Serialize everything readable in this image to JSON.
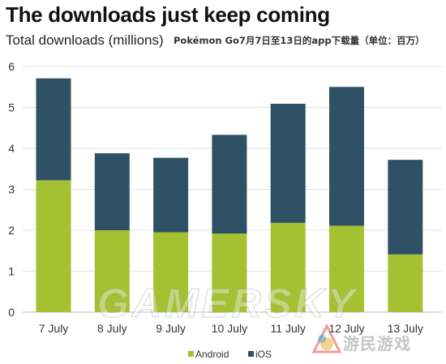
{
  "header": {
    "title": "The downloads just keep coming",
    "subtitle": "Total downloads (millions)",
    "subtitle_cn": "Pokémon Go7月7日至13日的app下载量（单位：百万）"
  },
  "watermark": {
    "text": "GAMERSKY",
    "cn_text": "游民游戏"
  },
  "colors": {
    "android": "#a5c031",
    "ios": "#2f5166",
    "axis_text": "#333333",
    "grid": "#e2e2e2"
  },
  "chart_data": {
    "type": "bar",
    "stacked": true,
    "title": "The downloads just keep coming",
    "subtitle": "Total downloads (millions)",
    "xlabel": "",
    "ylabel": "",
    "ylim": [
      0,
      6
    ],
    "yticks": [
      0,
      1,
      2,
      3,
      4,
      5,
      6
    ],
    "grid": true,
    "legend_position": "bottom-center",
    "categories": [
      "7 July",
      "8 July",
      "9 July",
      "10 July",
      "11 July",
      "12 July",
      "13 July"
    ],
    "series": [
      {
        "name": "Android",
        "color": "#a5c031",
        "values": [
          3.22,
          2.0,
          1.95,
          1.92,
          2.18,
          2.11,
          1.41
        ]
      },
      {
        "name": "iOS",
        "color": "#2f5166",
        "values": [
          2.49,
          1.88,
          1.82,
          2.41,
          2.91,
          3.39,
          2.31
        ]
      }
    ]
  }
}
